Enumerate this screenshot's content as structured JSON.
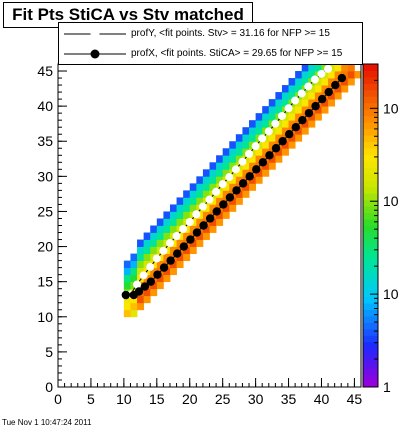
{
  "chart_data": {
    "type": "heatmap",
    "title": "Fit Pts StiCA vs Stv matched",
    "xlim": [
      0,
      46
    ],
    "ylim": [
      0,
      46
    ],
    "x_ticks": [
      0,
      5,
      10,
      15,
      20,
      25,
      30,
      35,
      40,
      45
    ],
    "y_ticks": [
      0,
      5,
      10,
      15,
      20,
      25,
      30,
      35,
      40,
      45
    ],
    "z_scale": "log",
    "z_range": [
      1,
      3000
    ],
    "z_tick_labels": [
      "1",
      "10",
      "10",
      "10"
    ],
    "legend_position": "top-right",
    "legend": [
      {
        "label": "profY, <fit points. Stv> =   31.16 for NFP >= 15",
        "style": "line-white-markers"
      },
      {
        "label": "profX, <fit points. StiCA> =   29.65 for NFP >= 15",
        "style": "line-black-markers"
      }
    ],
    "profile_y": [
      [
        11,
        13.2
      ],
      [
        12,
        14.6
      ],
      [
        13,
        15.9
      ],
      [
        14,
        17.1
      ],
      [
        15,
        18.3
      ],
      [
        16,
        19.4
      ],
      [
        17,
        20.5
      ],
      [
        18,
        21.5
      ],
      [
        19,
        22.5
      ],
      [
        20,
        23.5
      ],
      [
        21,
        24.6
      ],
      [
        22,
        25.7
      ],
      [
        23,
        26.7
      ],
      [
        24,
        27.8
      ],
      [
        25,
        28.9
      ],
      [
        26,
        29.9
      ],
      [
        27,
        31.0
      ],
      [
        28,
        32.1
      ],
      [
        29,
        33.2
      ],
      [
        30,
        34.3
      ],
      [
        31,
        35.4
      ],
      [
        32,
        36.4
      ],
      [
        33,
        37.5
      ],
      [
        34,
        38.6
      ],
      [
        35,
        39.7
      ],
      [
        36,
        40.8
      ],
      [
        37,
        41.8
      ],
      [
        38,
        42.8
      ],
      [
        39,
        43.8
      ],
      [
        40,
        44.6
      ],
      [
        41,
        45.3
      ]
    ],
    "profile_x": [
      [
        10.3,
        13.1
      ],
      [
        11.5,
        13.1
      ],
      [
        12.3,
        13.6
      ],
      [
        13.2,
        14.3
      ],
      [
        14.1,
        15.0
      ],
      [
        15.1,
        16.0
      ],
      [
        16.1,
        17.0
      ],
      [
        17.1,
        18.0
      ],
      [
        18.1,
        19.0
      ],
      [
        19.1,
        20.0
      ],
      [
        20.1,
        21.0
      ],
      [
        21.1,
        22.0
      ],
      [
        22.1,
        23.0
      ],
      [
        23.1,
        24.0
      ],
      [
        24.1,
        25.0
      ],
      [
        25.1,
        26.0
      ],
      [
        26.1,
        27.0
      ],
      [
        27.1,
        28.0
      ],
      [
        28.1,
        29.0
      ],
      [
        29.1,
        30.0
      ],
      [
        30.1,
        31.0
      ],
      [
        31.1,
        32.0
      ],
      [
        32.1,
        33.0
      ],
      [
        33.1,
        34.0
      ],
      [
        34.1,
        35.0
      ],
      [
        35.1,
        36.0
      ],
      [
        36.1,
        37.0
      ],
      [
        37.1,
        38.0
      ],
      [
        38.1,
        39.0
      ],
      [
        39.1,
        40.0
      ],
      [
        40.1,
        41.0
      ],
      [
        41.1,
        42.0
      ],
      [
        42.1,
        43.0
      ],
      [
        43.1,
        44.0
      ]
    ],
    "grid": false
  },
  "timestamp": "Tue Nov  1 10:47:24 2011",
  "colors": {
    "frame": "#000000",
    "profile_y_marker": "#ffffff",
    "profile_x_marker": "#000000"
  }
}
